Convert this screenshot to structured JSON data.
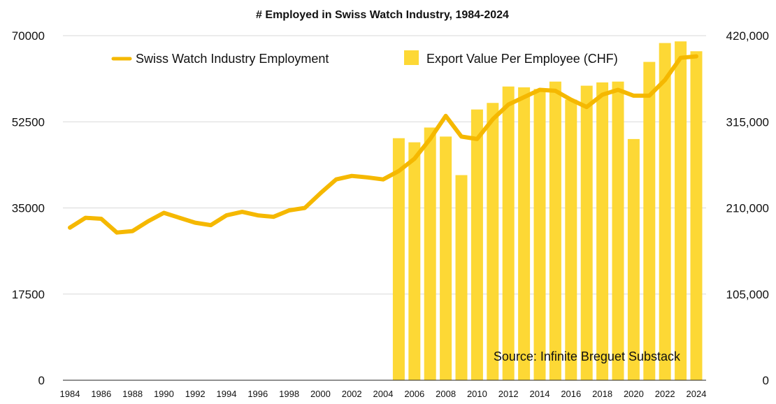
{
  "chart_data": {
    "type": "bar+line",
    "title": "# Employed in Swiss Watch Industry, 1984-2024",
    "source": "Source: Infinite Breguet Substack",
    "colors": {
      "line": "#F5B800",
      "bar": "#FDD835",
      "grid": "#d9d9d9"
    },
    "x_tick_labels": [
      "1984",
      "1986",
      "1988",
      "1990",
      "1992",
      "1994",
      "1996",
      "1998",
      "2000",
      "2002",
      "2004",
      "2006",
      "2008",
      "2010",
      "2012",
      "2014",
      "2016",
      "2018",
      "2020",
      "2022",
      "2024"
    ],
    "y_left": {
      "ylim": [
        0,
        70000
      ],
      "ticks": [
        "0",
        "17500",
        "35000",
        "52500",
        "70000"
      ]
    },
    "y_right": {
      "ylim": [
        0,
        420000
      ],
      "ticks": [
        "0",
        "105,000",
        "210,000",
        "315,000",
        "420,000"
      ]
    },
    "series": [
      {
        "name": "Swiss Watch Industry Employment",
        "type": "line",
        "axis": "left",
        "years": [
          1984,
          1985,
          1986,
          1987,
          1988,
          1989,
          1990,
          1991,
          1992,
          1993,
          1994,
          1995,
          1996,
          1997,
          1998,
          1999,
          2000,
          2001,
          2002,
          2003,
          2004,
          2005,
          2006,
          2007,
          2008,
          2009,
          2010,
          2011,
          2012,
          2013,
          2014,
          2015,
          2016,
          2017,
          2018,
          2019,
          2020,
          2021,
          2022,
          2023,
          2024
        ],
        "values": [
          31000,
          33000,
          32800,
          30000,
          30300,
          32300,
          34000,
          33000,
          32000,
          31500,
          33500,
          34200,
          33500,
          33200,
          34500,
          35000,
          38000,
          40800,
          41500,
          41200,
          40800,
          42500,
          45000,
          49000,
          53700,
          49500,
          49000,
          53000,
          56000,
          57500,
          59000,
          58800,
          57000,
          55500,
          58000,
          59000,
          57800,
          57800,
          61000,
          65500,
          65800
        ]
      },
      {
        "name": "Export Value Per Employee (CHF)",
        "type": "bar",
        "axis": "right",
        "years": [
          2005,
          2006,
          2007,
          2008,
          2009,
          2010,
          2011,
          2012,
          2013,
          2014,
          2015,
          2016,
          2017,
          2018,
          2019,
          2020,
          2021,
          2022,
          2023,
          2024
        ],
        "values": [
          295000,
          290000,
          308000,
          297000,
          250000,
          330000,
          338000,
          358000,
          357000,
          355000,
          364000,
          342000,
          359000,
          363000,
          364000,
          294000,
          388000,
          411000,
          413000,
          401000
        ]
      }
    ]
  }
}
